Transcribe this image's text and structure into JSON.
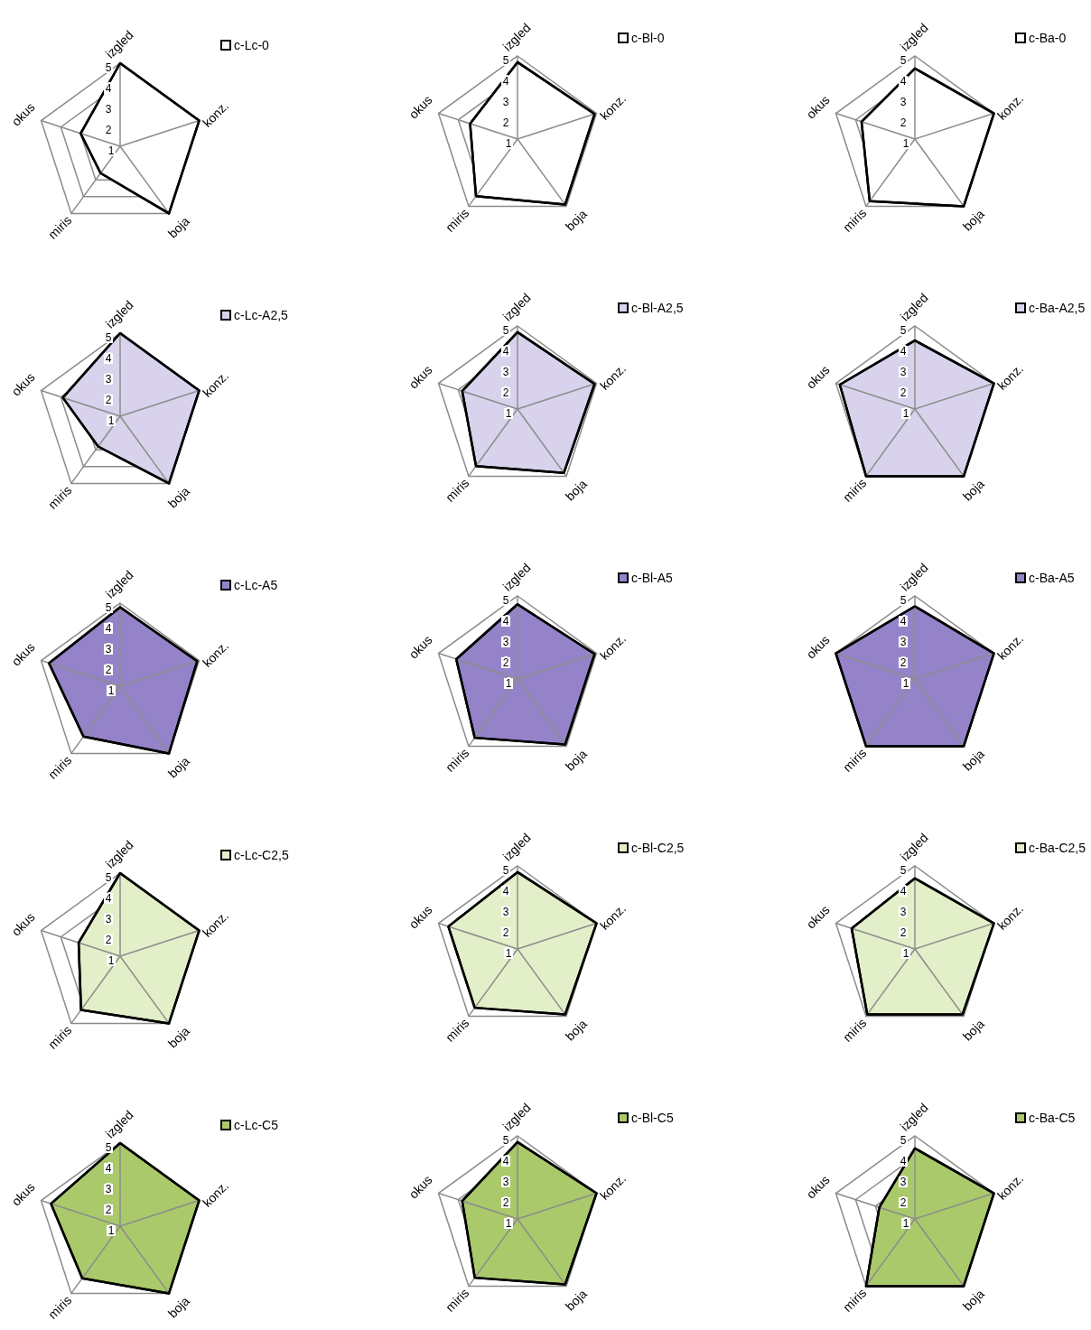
{
  "chart_data": [
    {
      "type": "radar",
      "categories": [
        "izgled",
        "konz.",
        "boja",
        "miris",
        "okus"
      ],
      "ylim": [
        1,
        5
      ],
      "yticks": [
        1,
        2,
        3,
        4,
        5
      ],
      "grid": true,
      "legend": "top right",
      "series": [
        {
          "name": "c-Lc-0",
          "color": "#ffffff",
          "values": [
            5,
            5,
            5,
            2.6,
            3.0
          ]
        }
      ]
    },
    {
      "type": "radar",
      "categories": [
        "izgled",
        "konz.",
        "boja",
        "miris",
        "okus"
      ],
      "ylim": [
        1,
        5
      ],
      "yticks": [
        1,
        2,
        3,
        4,
        5
      ],
      "grid": true,
      "legend": "top right",
      "series": [
        {
          "name": "c-Bl-0",
          "color": "#ffffff",
          "values": [
            4.7,
            4.9,
            4.9,
            4.4,
            3.4
          ]
        }
      ]
    },
    {
      "type": "radar",
      "categories": [
        "izgled",
        "konz.",
        "boja",
        "miris",
        "okus"
      ],
      "ylim": [
        1,
        5
      ],
      "yticks": [
        1,
        2,
        3,
        4,
        5
      ],
      "grid": true,
      "legend": "top right",
      "series": [
        {
          "name": "c-Ba-0",
          "color": "#ffffff",
          "values": [
            4.4,
            5,
            5,
            4.7,
            3.7
          ]
        }
      ]
    },
    {
      "type": "radar",
      "categories": [
        "izgled",
        "konz.",
        "boja",
        "miris",
        "okus"
      ],
      "ylim": [
        1,
        5
      ],
      "yticks": [
        1,
        2,
        3,
        4,
        5
      ],
      "grid": true,
      "legend": "top right",
      "series": [
        {
          "name": "c-Lc-A2,5",
          "color": "#d9d2ec",
          "values": [
            5,
            5,
            5,
            2.8,
            3.9
          ]
        }
      ]
    },
    {
      "type": "radar",
      "categories": [
        "izgled",
        "konz.",
        "boja",
        "miris",
        "okus"
      ],
      "ylim": [
        1,
        5
      ],
      "yticks": [
        1,
        2,
        3,
        4,
        5
      ],
      "grid": true,
      "legend": "top right",
      "series": [
        {
          "name": "c-Bl-A2,5",
          "color": "#d9d2ec",
          "values": [
            4.7,
            4.9,
            4.8,
            4.4,
            3.8
          ]
        }
      ]
    },
    {
      "type": "radar",
      "categories": [
        "izgled",
        "konz.",
        "boja",
        "miris",
        "okus"
      ],
      "ylim": [
        1,
        5
      ],
      "yticks": [
        1,
        2,
        3,
        4,
        5
      ],
      "grid": true,
      "legend": "top right",
      "series": [
        {
          "name": "c-Ba-A2,5",
          "color": "#d9d2ec",
          "values": [
            4.3,
            5,
            5,
            5,
            4.8
          ]
        }
      ]
    },
    {
      "type": "radar",
      "categories": [
        "izgled",
        "konz.",
        "boja",
        "miris",
        "okus"
      ],
      "ylim": [
        1,
        5
      ],
      "yticks": [
        1,
        2,
        3,
        4,
        5
      ],
      "grid": true,
      "legend": "top right",
      "series": [
        {
          "name": "c-Lc-A5",
          "color": "#9583c9",
          "values": [
            4.8,
            4.9,
            5,
            4.0,
            4.6
          ]
        }
      ]
    },
    {
      "type": "radar",
      "categories": [
        "izgled",
        "konz.",
        "boja",
        "miris",
        "okus"
      ],
      "ylim": [
        1,
        5
      ],
      "yticks": [
        1,
        2,
        3,
        4,
        5
      ],
      "grid": true,
      "legend": "top right",
      "series": [
        {
          "name": "c-Bl-A5",
          "color": "#9583c9",
          "values": [
            4.6,
            4.9,
            4.9,
            4.5,
            4.1
          ]
        }
      ]
    },
    {
      "type": "radar",
      "categories": [
        "izgled",
        "konz.",
        "boja",
        "miris",
        "okus"
      ],
      "ylim": [
        1,
        5
      ],
      "yticks": [
        1,
        2,
        3,
        4,
        5
      ],
      "grid": true,
      "legend": "top right",
      "series": [
        {
          "name": "c-Ba-A5",
          "color": "#9583c9",
          "values": [
            4.5,
            5,
            5,
            5,
            5
          ]
        }
      ]
    },
    {
      "type": "radar",
      "categories": [
        "izgled",
        "konz.",
        "boja",
        "miris",
        "okus"
      ],
      "ylim": [
        1,
        5
      ],
      "yticks": [
        1,
        2,
        3,
        4,
        5
      ],
      "grid": true,
      "legend": "top right",
      "series": [
        {
          "name": "c-Lc-C2,5",
          "color": "#e2efc8",
          "values": [
            5,
            5,
            5,
            4.2,
            3.1
          ]
        }
      ]
    },
    {
      "type": "radar",
      "categories": [
        "izgled",
        "konz.",
        "boja",
        "miris",
        "okus"
      ],
      "ylim": [
        1,
        5
      ],
      "yticks": [
        1,
        2,
        3,
        4,
        5
      ],
      "grid": true,
      "legend": "top right",
      "series": [
        {
          "name": "c-Bl-C2,5",
          "color": "#e2efc8",
          "values": [
            4.7,
            5,
            4.9,
            4.5,
            4.5
          ]
        }
      ]
    },
    {
      "type": "radar",
      "categories": [
        "izgled",
        "konz.",
        "boja",
        "miris",
        "okus"
      ],
      "ylim": [
        1,
        5
      ],
      "yticks": [
        1,
        2,
        3,
        4,
        5
      ],
      "grid": true,
      "legend": "top right",
      "series": [
        {
          "name": "c-Ba-C2,5",
          "color": "#e2efc8",
          "values": [
            4.4,
            5,
            4.9,
            4.9,
            4.2
          ]
        }
      ]
    },
    {
      "type": "radar",
      "categories": [
        "izgled",
        "konz.",
        "boja",
        "miris",
        "okus"
      ],
      "ylim": [
        1,
        5
      ],
      "yticks": [
        1,
        2,
        3,
        4,
        5
      ],
      "grid": true,
      "legend": "top right",
      "series": [
        {
          "name": "c-Lc-C5",
          "color": "#a9c96b",
          "values": [
            5,
            5,
            5,
            4.1,
            4.5
          ]
        }
      ]
    },
    {
      "type": "radar",
      "categories": [
        "izgled",
        "konz.",
        "boja",
        "miris",
        "okus"
      ],
      "ylim": [
        1,
        5
      ],
      "yticks": [
        1,
        2,
        3,
        4,
        5
      ],
      "grid": true,
      "legend": "top right",
      "series": [
        {
          "name": "c-Bl-C5",
          "color": "#a9c96b",
          "values": [
            4.7,
            5,
            4.9,
            4.5,
            3.8
          ]
        }
      ]
    },
    {
      "type": "radar",
      "categories": [
        "izgled",
        "konz.",
        "boja",
        "miris",
        "okus"
      ],
      "ylim": [
        1,
        5
      ],
      "yticks": [
        1,
        2,
        3,
        4,
        5
      ],
      "grid": true,
      "legend": "top right",
      "series": [
        {
          "name": "c-Ba-C5",
          "color": "#a9c96b",
          "values": [
            4.4,
            5,
            5,
            5,
            2.8
          ]
        }
      ]
    }
  ]
}
